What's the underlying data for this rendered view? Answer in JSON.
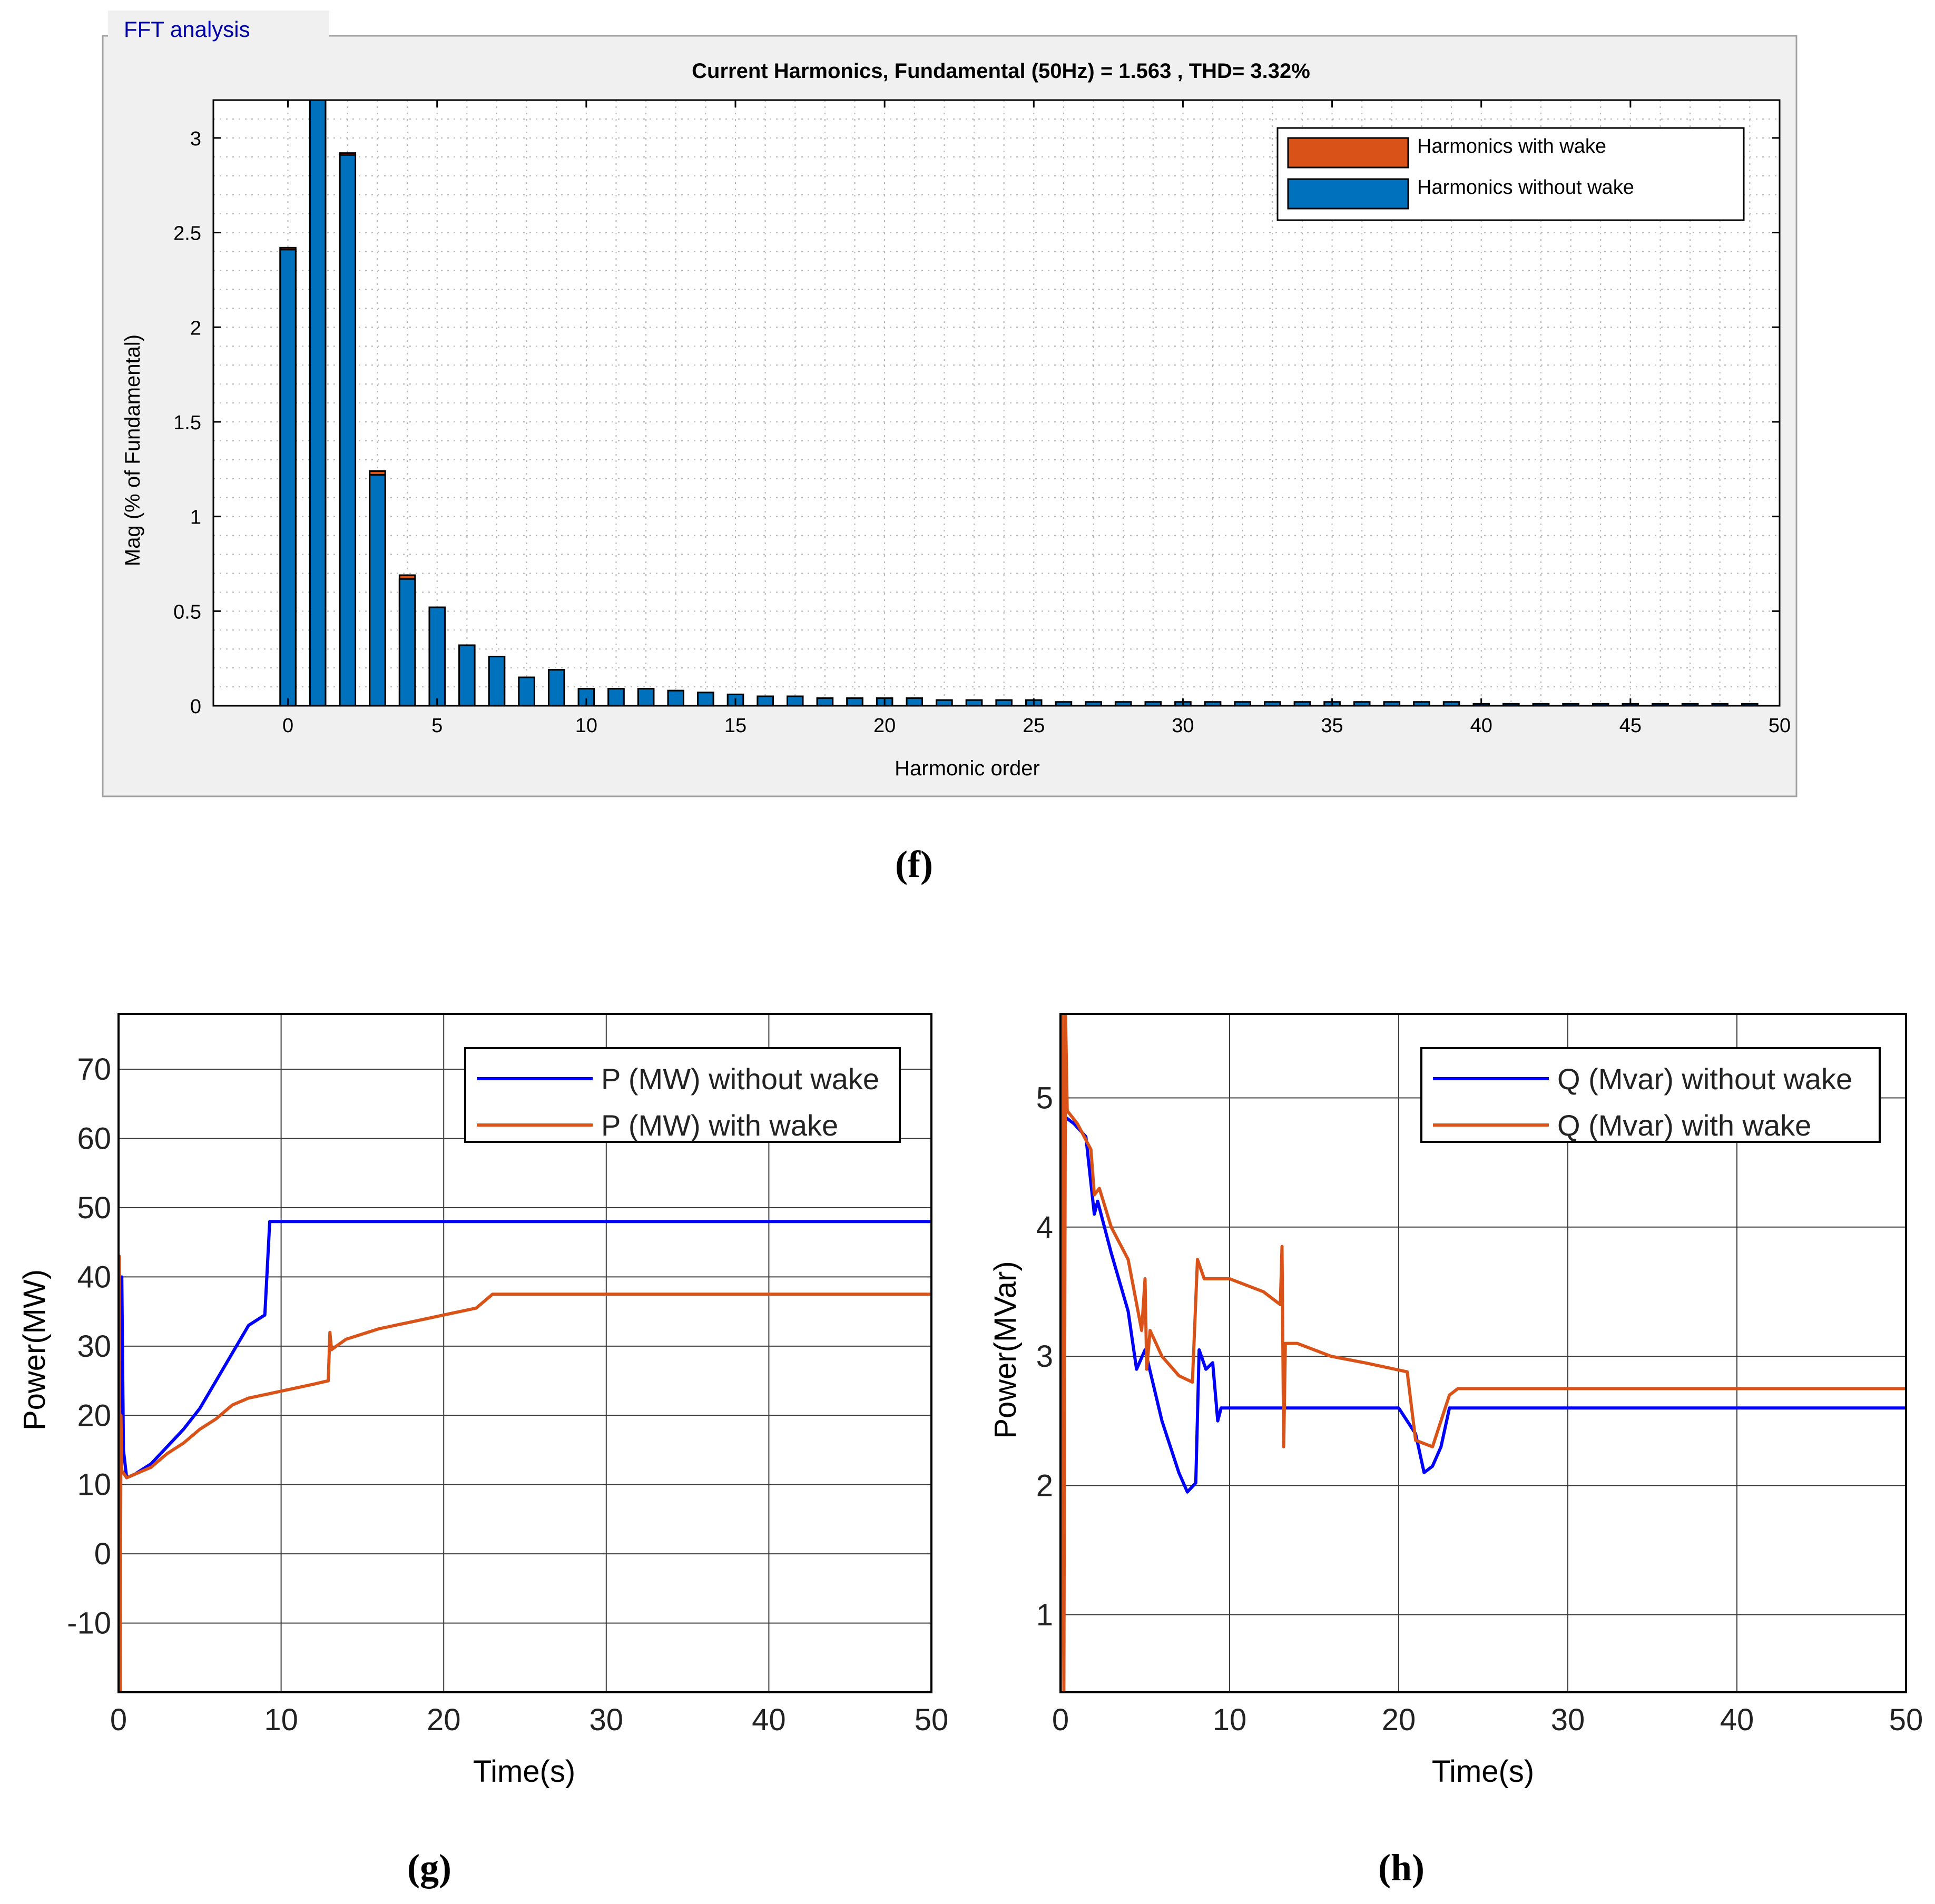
{
  "chart_data": [
    {
      "id": "f",
      "type": "bar",
      "panel_title": "FFT analysis",
      "title": "Current Harmonics, Fundamental (50Hz) = 1.563 , THD= 3.32%",
      "xlabel": "Harmonic order",
      "ylabel": "Mag (% of Fundamental)",
      "xlim": [
        -2.5,
        50
      ],
      "ylim": [
        0,
        3.2
      ],
      "xticks": [
        0,
        5,
        10,
        15,
        20,
        25,
        30,
        35,
        40,
        45,
        50
      ],
      "yticks": [
        0,
        0.5,
        1,
        1.5,
        2,
        2.5,
        3
      ],
      "grid": "minor-dotted",
      "legend_position": "top-right",
      "categories": [
        0,
        1,
        2,
        3,
        4,
        5,
        6,
        7,
        8,
        9,
        10,
        11,
        12,
        13,
        14,
        15,
        16,
        17,
        18,
        19,
        20,
        21,
        22,
        23,
        24,
        25,
        26,
        27,
        28,
        29,
        30,
        31,
        32,
        33,
        34,
        35,
        36,
        37,
        38,
        39,
        40,
        41,
        42,
        43,
        44,
        45,
        46,
        47,
        48,
        49
      ],
      "series": [
        {
          "name": "Harmonics with wake",
          "color": "#D95319",
          "values": [
            2.42,
            3.2,
            2.92,
            1.24,
            0.69,
            0.52,
            0.32,
            0.26,
            0.15,
            0.19,
            0.09,
            0.09,
            0.09,
            0.08,
            0.07,
            0.06,
            0.05,
            0.05,
            0.04,
            0.04,
            0.04,
            0.04,
            0.03,
            0.03,
            0.03,
            0.03,
            0.02,
            0.02,
            0.02,
            0.02,
            0.02,
            0.02,
            0.02,
            0.02,
            0.02,
            0.02,
            0.02,
            0.02,
            0.02,
            0.02,
            0.01,
            0.01,
            0.01,
            0.01,
            0.01,
            0.01,
            0.01,
            0.01,
            0.01,
            0.01
          ]
        },
        {
          "name": "Harmonics without wake",
          "color": "#0072BD",
          "values": [
            2.41,
            3.2,
            2.91,
            1.22,
            0.67,
            0.52,
            0.32,
            0.26,
            0.15,
            0.19,
            0.09,
            0.09,
            0.09,
            0.08,
            0.07,
            0.06,
            0.05,
            0.05,
            0.04,
            0.04,
            0.04,
            0.04,
            0.03,
            0.03,
            0.03,
            0.03,
            0.02,
            0.02,
            0.02,
            0.02,
            0.02,
            0.02,
            0.02,
            0.02,
            0.02,
            0.02,
            0.02,
            0.02,
            0.02,
            0.02,
            0.01,
            0.01,
            0.01,
            0.01,
            0.01,
            0.01,
            0.01,
            0.01,
            0.01,
            0.01
          ]
        }
      ]
    },
    {
      "id": "g",
      "type": "line",
      "xlabel": "Time(s)",
      "ylabel": "Power(MW)",
      "xlim": [
        0,
        50
      ],
      "ylim": [
        -20,
        78
      ],
      "xticks": [
        0,
        10,
        20,
        30,
        40,
        50
      ],
      "yticks": [
        -10,
        0,
        10,
        20,
        30,
        40,
        50,
        60,
        70
      ],
      "grid": true,
      "legend_position": "top-right",
      "series": [
        {
          "name": "P (MW) without wake",
          "color": "#0000FF",
          "points": [
            [
              0,
              -20
            ],
            [
              0.05,
              5
            ],
            [
              0.1,
              12
            ],
            [
              0.2,
              40
            ],
            [
              0.3,
              15
            ],
            [
              0.5,
              11
            ],
            [
              1,
              11.5
            ],
            [
              2,
              13
            ],
            [
              3,
              15.5
            ],
            [
              4,
              18
            ],
            [
              5,
              21
            ],
            [
              6,
              25
            ],
            [
              7,
              29
            ],
            [
              8,
              33
            ],
            [
              9,
              34.5
            ],
            [
              9.3,
              48
            ],
            [
              10,
              48
            ],
            [
              20,
              48
            ],
            [
              30,
              48
            ],
            [
              40,
              48
            ],
            [
              50,
              48
            ]
          ]
        },
        {
          "name": "P (MW) with wake",
          "color": "#D95319",
          "points": [
            [
              0,
              -20
            ],
            [
              0.05,
              43
            ],
            [
              0.1,
              -20
            ],
            [
              0.15,
              20
            ],
            [
              0.2,
              12
            ],
            [
              0.5,
              11
            ],
            [
              1,
              11.5
            ],
            [
              2,
              12.5
            ],
            [
              3,
              14.5
            ],
            [
              4,
              16
            ],
            [
              5,
              18
            ],
            [
              6,
              19.5
            ],
            [
              7,
              21.5
            ],
            [
              8,
              22.5
            ],
            [
              9,
              23
            ],
            [
              10,
              23.5
            ],
            [
              11,
              24
            ],
            [
              12,
              24.5
            ],
            [
              12.9,
              25
            ],
            [
              13,
              32
            ],
            [
              13.1,
              29.5
            ],
            [
              14,
              31
            ],
            [
              16,
              32.5
            ],
            [
              18,
              33.5
            ],
            [
              20,
              34.5
            ],
            [
              22,
              35.5
            ],
            [
              23,
              37.5
            ],
            [
              24,
              37.5
            ],
            [
              30,
              37.5
            ],
            [
              40,
              37.5
            ],
            [
              50,
              37.5
            ]
          ]
        }
      ]
    },
    {
      "id": "h",
      "type": "line",
      "xlabel": "Time(s)",
      "ylabel": "Power(MVar)",
      "xlim": [
        0,
        50
      ],
      "ylim": [
        0.4,
        5.65
      ],
      "xticks": [
        0,
        10,
        20,
        30,
        40,
        50
      ],
      "yticks": [
        1,
        2,
        3,
        4,
        5
      ],
      "grid": true,
      "legend_position": "top-right",
      "series": [
        {
          "name": "Q (Mvar) without wake",
          "color": "#0000FF",
          "points": [
            [
              0.3,
              4.85
            ],
            [
              0.8,
              4.8
            ],
            [
              1.5,
              4.7
            ],
            [
              2,
              4.1
            ],
            [
              2.2,
              4.2
            ],
            [
              3,
              3.8
            ],
            [
              4,
              3.35
            ],
            [
              4.5,
              2.9
            ],
            [
              5,
              3.05
            ],
            [
              6,
              2.5
            ],
            [
              7,
              2.1
            ],
            [
              7.5,
              1.95
            ],
            [
              8,
              2.02
            ],
            [
              8.2,
              3.05
            ],
            [
              8.6,
              2.9
            ],
            [
              9,
              2.95
            ],
            [
              9.3,
              2.5
            ],
            [
              9.5,
              2.6
            ],
            [
              20,
              2.6
            ],
            [
              21,
              2.4
            ],
            [
              21.5,
              2.1
            ],
            [
              22,
              2.15
            ],
            [
              22.5,
              2.3
            ],
            [
              23,
              2.6
            ],
            [
              30,
              2.6
            ],
            [
              40,
              2.6
            ],
            [
              50,
              2.6
            ]
          ]
        },
        {
          "name": "Q (Mvar) with wake",
          "color": "#D95319",
          "points": [
            [
              0,
              0.4
            ],
            [
              0.1,
              5.65
            ],
            [
              0.2,
              0.4
            ],
            [
              0.3,
              5.65
            ],
            [
              0.4,
              4.9
            ],
            [
              1,
              4.8
            ],
            [
              1.8,
              4.6
            ],
            [
              2,
              4.25
            ],
            [
              2.3,
              4.3
            ],
            [
              3,
              4
            ],
            [
              4,
              3.75
            ],
            [
              4.8,
              3.2
            ],
            [
              5,
              3.6
            ],
            [
              5.1,
              2.9
            ],
            [
              5.3,
              3.2
            ],
            [
              6,
              3
            ],
            [
              7,
              2.85
            ],
            [
              7.8,
              2.8
            ],
            [
              8.1,
              3.75
            ],
            [
              8.5,
              3.6
            ],
            [
              10,
              3.6
            ],
            [
              12,
              3.5
            ],
            [
              13,
              3.4
            ],
            [
              13.1,
              3.85
            ],
            [
              13.2,
              2.3
            ],
            [
              13.3,
              3.1
            ],
            [
              14,
              3.1
            ],
            [
              16,
              3
            ],
            [
              18,
              2.95
            ],
            [
              20.5,
              2.88
            ],
            [
              21,
              2.35
            ],
            [
              22,
              2.3
            ],
            [
              23,
              2.7
            ],
            [
              23.5,
              2.75
            ],
            [
              30,
              2.75
            ],
            [
              40,
              2.75
            ],
            [
              50,
              2.75
            ]
          ]
        }
      ]
    }
  ],
  "captions": {
    "f": "(f)",
    "g": "(g)",
    "h": "(h)"
  }
}
